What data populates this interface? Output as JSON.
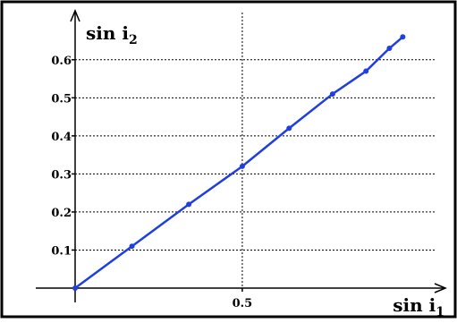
{
  "chart_data": {
    "type": "line",
    "xlabel": {
      "base": "sin i",
      "sub": "1"
    },
    "ylabel": {
      "base": "sin i",
      "sub": "2"
    },
    "x_ticks": [
      {
        "value": 0.5,
        "label": "0.5"
      }
    ],
    "y_ticks": [
      {
        "value": 0.1,
        "label": "0.1"
      },
      {
        "value": 0.2,
        "label": "0.2"
      },
      {
        "value": 0.3,
        "label": "0.3"
      },
      {
        "value": 0.4,
        "label": "0.4"
      },
      {
        "value": 0.5,
        "label": "0.5"
      },
      {
        "value": 0.6,
        "label": "0.6"
      }
    ],
    "xlim": [
      0,
      1.07
    ],
    "ylim": [
      0,
      0.71
    ],
    "grid": true,
    "series": [
      {
        "x": [
          0,
          0.17,
          0.34,
          0.5,
          0.64,
          0.77,
          0.87,
          0.94,
          0.98
        ],
        "y": [
          0,
          0.11,
          0.22,
          0.32,
          0.42,
          0.51,
          0.57,
          0.63,
          0.66
        ],
        "color": "#1f3fe0"
      }
    ],
    "axis_color": "#000000",
    "grid_color": "#000000",
    "frame_color": "#000000"
  }
}
